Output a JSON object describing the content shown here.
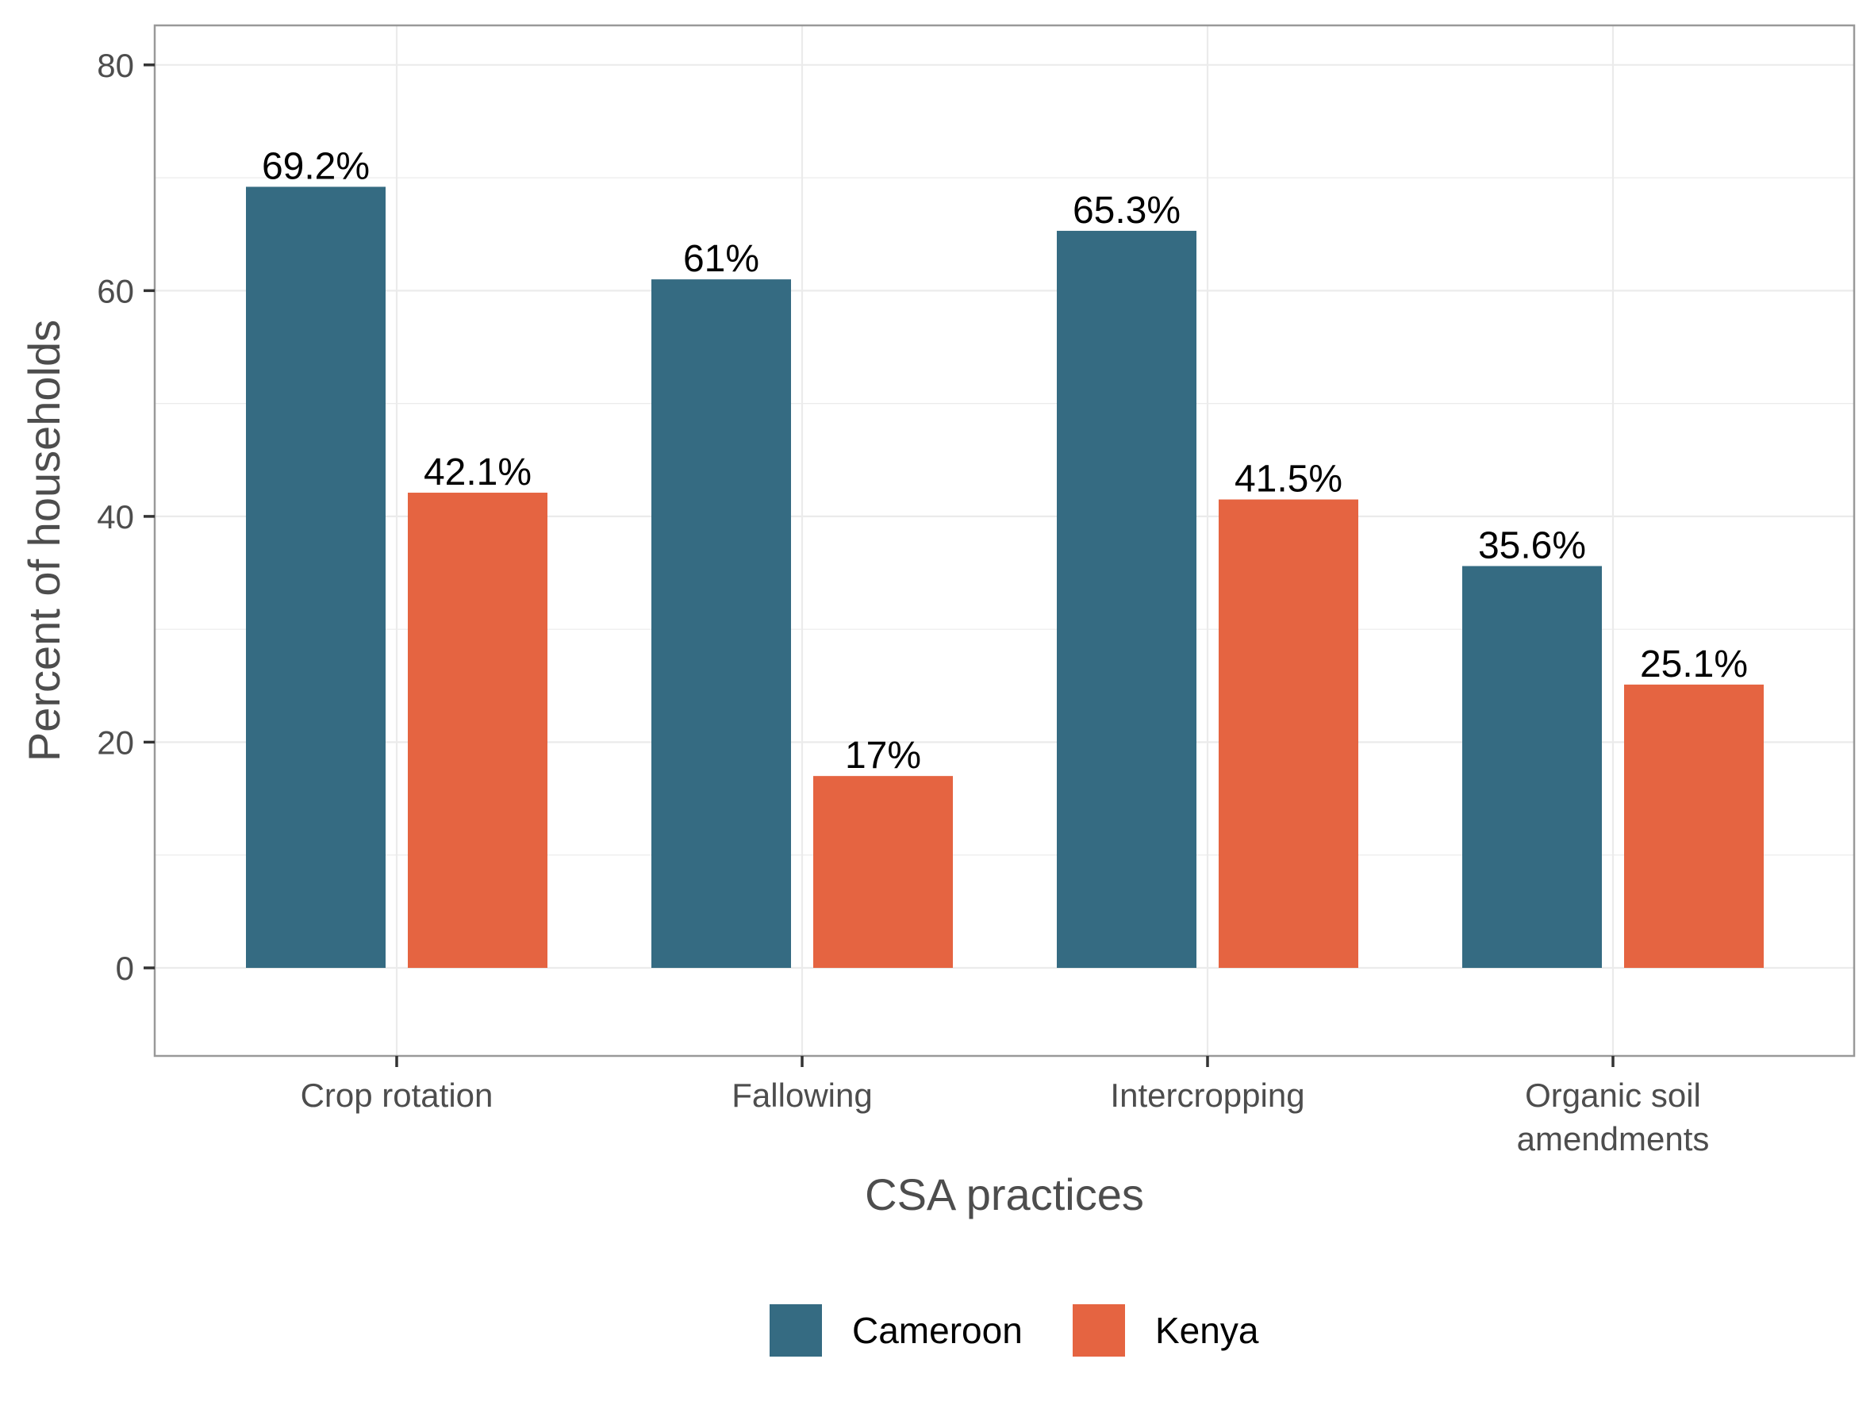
{
  "chart_data": {
    "type": "bar",
    "title": "",
    "xlabel": "CSA practices",
    "ylabel": "Percent of households",
    "ylim": [
      -7.8,
      83.5
    ],
    "yticks": [
      0,
      20,
      40,
      60,
      80
    ],
    "grid": true,
    "legend_position": "bottom",
    "categories": [
      [
        "Crop rotation"
      ],
      [
        "Fallowing"
      ],
      [
        "Intercropping"
      ],
      [
        "Organic soil",
        "amendments"
      ]
    ],
    "series": [
      {
        "name": "Cameroon",
        "color": "#356b82",
        "values": [
          69.2,
          61,
          65.3,
          35.6
        ],
        "labels": [
          "69.2%",
          "61%",
          "65.3%",
          "35.6%"
        ]
      },
      {
        "name": "Kenya",
        "color": "#e56441",
        "values": [
          42.1,
          17,
          41.5,
          25.1
        ],
        "labels": [
          "42.1%",
          "17%",
          "41.5%",
          "25.1%"
        ]
      }
    ]
  }
}
